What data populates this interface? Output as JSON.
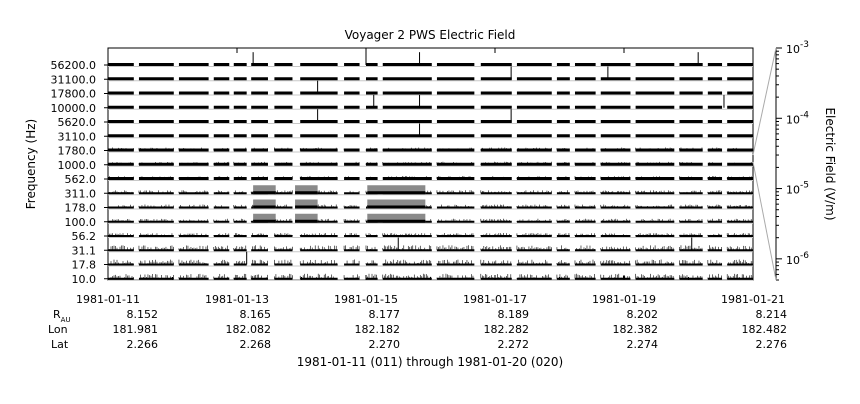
{
  "chart_data": {
    "type": "spectrogram-strip",
    "title": "Voyager 2 PWS Electric Field",
    "ylabel": "Frequency (Hz)",
    "channels_hz": [
      "56200.0",
      "31100.0",
      "17800.0",
      "10000.0",
      "5620.0",
      "3110.0",
      "1780.0",
      "1000.0",
      "562.0",
      "311.0",
      "178.0",
      "100.0",
      "56.2",
      "31.1",
      "17.8",
      "10.0"
    ],
    "x_ticks": [
      "1981-01-11",
      "1981-01-13",
      "1981-01-15",
      "1981-01-17",
      "1981-01-19",
      "1981-01-21"
    ],
    "x_range_days": [
      0,
      10
    ],
    "x_tick_days": [
      0,
      2,
      4,
      6,
      8,
      10
    ],
    "ephemeris": {
      "r_label_main": "R",
      "r_label_sub": "AU",
      "lon_label": "Lon",
      "lat_label": "Lat",
      "r": [
        "8.152",
        "8.165",
        "8.177",
        "8.189",
        "8.202",
        "8.214"
      ],
      "lon": [
        "181.981",
        "182.082",
        "182.182",
        "182.282",
        "182.382",
        "182.482"
      ],
      "lat": [
        "2.266",
        "2.268",
        "2.270",
        "2.272",
        "2.274",
        "2.276"
      ]
    },
    "xlabel": "1981-01-11 (011) through 1981-01-20 (020)",
    "colorbar": {
      "label": "Electric Field (V/m)",
      "scale": "log",
      "range": [
        5e-07,
        0.001
      ],
      "tick_values": [
        0.001,
        0.0001,
        1e-05,
        1e-06
      ],
      "tick_base": "10",
      "tick_exponents": [
        "-3",
        "-4",
        "-5",
        "-6"
      ]
    },
    "data_gaps_days": [
      [
        0.4,
        0.48
      ],
      [
        1.02,
        1.1
      ],
      [
        1.56,
        1.64
      ],
      [
        1.88,
        1.95
      ],
      [
        2.15,
        2.22
      ],
      [
        2.48,
        2.58
      ],
      [
        2.86,
        2.98
      ],
      [
        3.56,
        3.66
      ],
      [
        3.9,
        4.0
      ],
      [
        4.18,
        4.26
      ],
      [
        5.02,
        5.1
      ],
      [
        5.68,
        5.78
      ],
      [
        6.26,
        6.34
      ],
      [
        6.88,
        6.96
      ],
      [
        7.16,
        7.24
      ],
      [
        7.56,
        7.64
      ],
      [
        8.1,
        8.18
      ],
      [
        8.78,
        8.86
      ],
      [
        9.22,
        9.3
      ],
      [
        9.52,
        9.6
      ]
    ],
    "bright_bands": [
      {
        "start_day": 2.25,
        "end_day": 2.6,
        "channels": [
          "311.0",
          "178.0",
          "100.0"
        ]
      },
      {
        "start_day": 2.9,
        "end_day": 3.25,
        "channels": [
          "311.0",
          "178.0",
          "100.0"
        ]
      },
      {
        "start_day": 4.02,
        "end_day": 4.92,
        "channels": [
          "311.0",
          "178.0",
          "100.0"
        ]
      }
    ],
    "spikes": [
      {
        "day": 2.25,
        "channel": "56200.0"
      },
      {
        "day": 3.25,
        "channel": "17800.0"
      },
      {
        "day": 3.25,
        "channel": "5620.0"
      },
      {
        "day": 4.0,
        "channel": "56200.0"
      },
      {
        "day": 4.12,
        "channel": "10000.0"
      },
      {
        "day": 4.83,
        "channel": "56200.0"
      },
      {
        "day": 4.83,
        "channel": "10000.0"
      },
      {
        "day": 4.83,
        "channel": "3110.0"
      },
      {
        "day": 6.25,
        "channel": "5620.0"
      },
      {
        "day": 6.25,
        "channel": "31100.0"
      },
      {
        "day": 7.75,
        "channel": "31100.0"
      },
      {
        "day": 9.15,
        "channel": "56200.0"
      },
      {
        "day": 9.55,
        "channel": "10000.0"
      },
      {
        "day": 2.15,
        "channel": "17.8"
      },
      {
        "day": 4.5,
        "channel": "31.1"
      },
      {
        "day": 9.05,
        "channel": "31.1"
      }
    ]
  }
}
